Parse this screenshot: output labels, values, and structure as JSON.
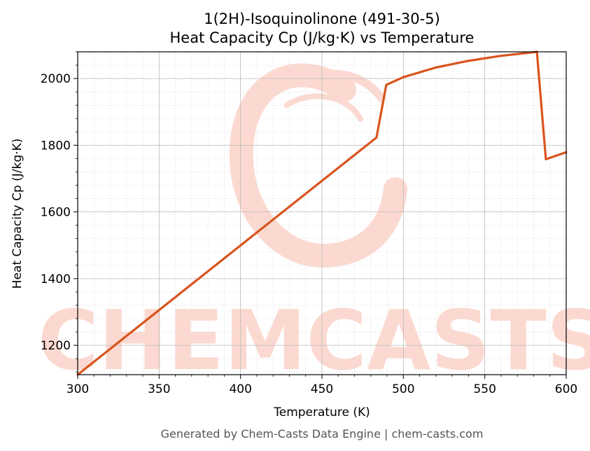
{
  "chart_data": {
    "type": "line",
    "title_line1": "1(2H)-Isoquinolinone (491-30-5)",
    "title_line2": "Heat Capacity Cp (J/kg·K) vs Temperature",
    "xlabel": "Temperature (K)",
    "ylabel": "Heat Capacity Cp (J/kg·K)",
    "xlim": [
      300,
      600
    ],
    "ylim": [
      1112,
      2080
    ],
    "xticks": [
      300,
      350,
      400,
      450,
      500,
      550,
      600
    ],
    "yticks": [
      1200,
      1400,
      1600,
      1800,
      2000
    ],
    "grid": true,
    "series": [
      {
        "color": "#d9541e",
        "x": [
          300,
          483.5,
          489.5,
          500,
          520,
          540,
          560,
          582,
          587.5,
          600
        ],
        "y": [
          1112,
          1823,
          1981,
          2004,
          2033,
          2053,
          2068,
          2080,
          1758,
          1779
        ]
      }
    ]
  },
  "watermark": {
    "text": "CHEMCASTS",
    "color": "#fcd9d0"
  },
  "footer": "Generated by Chem-Casts Data Engine | chem-casts.com"
}
